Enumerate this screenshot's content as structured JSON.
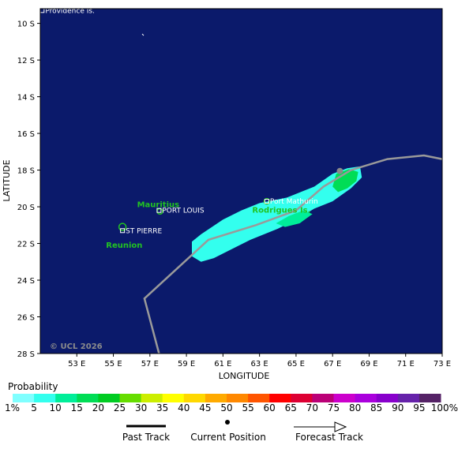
{
  "map": {
    "lon_range": [
      51,
      73
    ],
    "lat_range": [
      9.2,
      28
    ],
    "background_color": "#0b1a6b",
    "land_color": "#22c322",
    "track_color": "#9a9a9a",
    "x_axis_title": "LONGITUDE",
    "y_axis_title": "LATITUDE",
    "x_ticks": [
      {
        "value": 53,
        "label": "53 E"
      },
      {
        "value": 55,
        "label": "55 E"
      },
      {
        "value": 57,
        "label": "57 E"
      },
      {
        "value": 59,
        "label": "59 E"
      },
      {
        "value": 61,
        "label": "61 E"
      },
      {
        "value": 63,
        "label": "63 E"
      },
      {
        "value": 65,
        "label": "65 E"
      },
      {
        "value": 67,
        "label": "67 E"
      },
      {
        "value": 69,
        "label": "69 E"
      },
      {
        "value": 71,
        "label": "71 E"
      },
      {
        "value": 73,
        "label": "73 E"
      }
    ],
    "y_ticks": [
      {
        "value": 10,
        "label": "10 S"
      },
      {
        "value": 12,
        "label": "12 S"
      },
      {
        "value": 14,
        "label": "14 S"
      },
      {
        "value": 16,
        "label": "16 S"
      },
      {
        "value": 18,
        "label": "18 S"
      },
      {
        "value": 20,
        "label": "20 S"
      },
      {
        "value": 22,
        "label": "22 S"
      },
      {
        "value": 24,
        "label": "24 S"
      },
      {
        "value": 26,
        "label": "26 S"
      },
      {
        "value": 28,
        "label": "28 S"
      }
    ],
    "credit": "© UCL 2026",
    "places": [
      {
        "name": "Providence Is.",
        "lon": 51.1,
        "lat": 9.3
      },
      {
        "name": "PORT LOUIS",
        "lon": 57.5,
        "lat": 20.2
      },
      {
        "name": "Port Mathurin",
        "lon": 63.4,
        "lat": 19.7
      },
      {
        "name": "ST PIERRE",
        "lon": 55.5,
        "lat": 21.3
      }
    ],
    "islands": [
      {
        "name": "Mauritius",
        "lon": 57.55,
        "lat": 20.25,
        "label_lon": 56.3,
        "label_lat": 19.9
      },
      {
        "name": "Reunion",
        "lon": 55.5,
        "lat": 21.1,
        "label_lon": 54.6,
        "label_lat": 22.1
      },
      {
        "name": "Rodrigues Is.",
        "lon": 63.4,
        "lat": 19.7,
        "label_lon": 62.6,
        "label_lat": 20.2
      }
    ],
    "past_track": [
      [
        57.5,
        28.0
      ],
      [
        56.7,
        25.0
      ],
      [
        60.2,
        21.8
      ],
      [
        62.8,
        21.0
      ],
      [
        65.0,
        20.2
      ],
      [
        66.5,
        18.9
      ],
      [
        68.0,
        18.0
      ],
      [
        70.0,
        17.4
      ],
      [
        72.0,
        17.2
      ],
      [
        73.0,
        17.4
      ]
    ],
    "probability_regions": [
      {
        "level": 5,
        "points": [
          [
            59.3,
            21.9
          ],
          [
            59.8,
            21.5
          ],
          [
            61.0,
            20.7
          ],
          [
            62.0,
            20.2
          ],
          [
            63.0,
            19.8
          ],
          [
            64.5,
            19.5
          ],
          [
            66.0,
            18.9
          ],
          [
            67.0,
            18.2
          ],
          [
            67.8,
            17.9
          ],
          [
            68.5,
            17.8
          ],
          [
            68.6,
            18.4
          ],
          [
            68.0,
            19.0
          ],
          [
            67.0,
            19.7
          ],
          [
            66.0,
            20.1
          ],
          [
            65.0,
            20.7
          ],
          [
            64.0,
            21.2
          ],
          [
            62.5,
            21.8
          ],
          [
            61.5,
            22.3
          ],
          [
            60.5,
            22.8
          ],
          [
            59.8,
            23.0
          ],
          [
            59.3,
            22.7
          ]
        ]
      },
      {
        "level": 15,
        "points": [
          [
            67.2,
            18.2
          ],
          [
            67.9,
            17.95
          ],
          [
            68.4,
            18.1
          ],
          [
            68.3,
            18.6
          ],
          [
            67.8,
            19.0
          ],
          [
            67.3,
            19.2
          ],
          [
            67.0,
            18.9
          ]
        ]
      },
      {
        "level": 10,
        "points": [
          [
            63.9,
            20.9
          ],
          [
            64.6,
            20.5
          ],
          [
            65.4,
            20.2
          ],
          [
            65.9,
            20.4
          ],
          [
            65.2,
            20.9
          ],
          [
            64.4,
            21.1
          ]
        ]
      }
    ],
    "current_position": {
      "lon": 67.4,
      "lat": 18.05
    },
    "current_position_color": "#8a8a8a"
  },
  "legend": {
    "title": "Probability",
    "bins": [
      {
        "label": "1%",
        "color": "#80ffff"
      },
      {
        "label": "5",
        "color": "#33ffee"
      },
      {
        "label": "10",
        "color": "#00ee99"
      },
      {
        "label": "15",
        "color": "#00dd55"
      },
      {
        "label": "20",
        "color": "#00cc22"
      },
      {
        "label": "25",
        "color": "#66dd00"
      },
      {
        "label": "30",
        "color": "#ccee00"
      },
      {
        "label": "35",
        "color": "#ffff00"
      },
      {
        "label": "40",
        "color": "#ffd800"
      },
      {
        "label": "45",
        "color": "#ffaa00"
      },
      {
        "label": "50",
        "color": "#ff8800"
      },
      {
        "label": "55",
        "color": "#ff5500"
      },
      {
        "label": "60",
        "color": "#ff0000"
      },
      {
        "label": "65",
        "color": "#dd0033"
      },
      {
        "label": "70",
        "color": "#bb0077"
      },
      {
        "label": "75",
        "color": "#cc00cc"
      },
      {
        "label": "80",
        "color": "#aa00dd"
      },
      {
        "label": "85",
        "color": "#8800cc"
      },
      {
        "label": "90",
        "color": "#6622aa"
      },
      {
        "label": "95",
        "color": "#552266"
      },
      {
        "label": "100%",
        "color": "#552266"
      }
    ]
  },
  "key": {
    "past_track": "Past Track",
    "current_position": "Current Position",
    "forecast_track": "Forecast Track"
  }
}
